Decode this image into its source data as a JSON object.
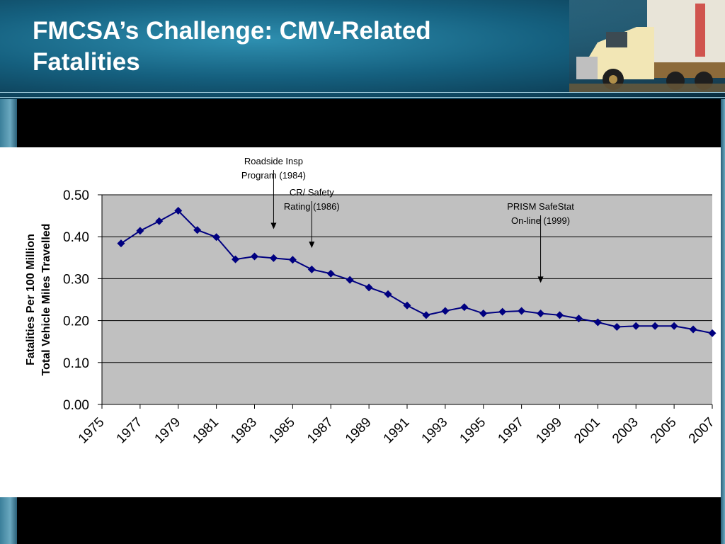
{
  "slide": {
    "title_line1": "FMCSA’s Challenge:  CMV-Related",
    "title_line2": "Fatalities"
  },
  "chart_data": {
    "type": "line",
    "title": "",
    "ylabel_line1": "Fatalities Per 100 Million",
    "ylabel_line2": "Total Vehicle Miles Travelled",
    "xlabel": "",
    "ylim": [
      0,
      0.5
    ],
    "yticks": [
      "0.00",
      "0.10",
      "0.20",
      "0.30",
      "0.40",
      "0.50"
    ],
    "xlim": [
      1975,
      2007
    ],
    "xticks": [
      "1975",
      "1977",
      "1979",
      "1981",
      "1983",
      "1985",
      "1987",
      "1989",
      "1991",
      "1993",
      "1995",
      "1997",
      "1999",
      "2001",
      "2003",
      "2005",
      "2007"
    ],
    "grid": true,
    "plot_background": "#c0c0c0",
    "series": [
      {
        "color": "#000080",
        "x": [
          1976,
          1977,
          1978,
          1979,
          1980,
          1981,
          1982,
          1983,
          1984,
          1985,
          1986,
          1987,
          1988,
          1989,
          1990,
          1991,
          1992,
          1993,
          1994,
          1995,
          1996,
          1997,
          1998,
          1999,
          2000,
          2001,
          2002,
          2003,
          2004,
          2005,
          2006,
          2007
        ],
        "values": [
          0.384,
          0.414,
          0.437,
          0.462,
          0.416,
          0.399,
          0.346,
          0.353,
          0.349,
          0.345,
          0.322,
          0.312,
          0.297,
          0.279,
          0.263,
          0.236,
          0.213,
          0.223,
          0.232,
          0.217,
          0.221,
          0.223,
          0.217,
          0.213,
          0.205,
          0.196,
          0.185,
          0.187,
          0.187,
          0.187,
          0.179,
          0.17
        ]
      }
    ],
    "annotations": [
      {
        "line1": "Roadside Insp",
        "line2": "Program (1984)",
        "x": 1984,
        "y": 0.418
      },
      {
        "line1": "CR/ Safety",
        "line2": "Rating (1986)",
        "x": 1986,
        "y": 0.373
      },
      {
        "line1": "PRISM SafeStat",
        "line2": "On-line (1999)",
        "x": 1998,
        "y": 0.29
      }
    ]
  }
}
